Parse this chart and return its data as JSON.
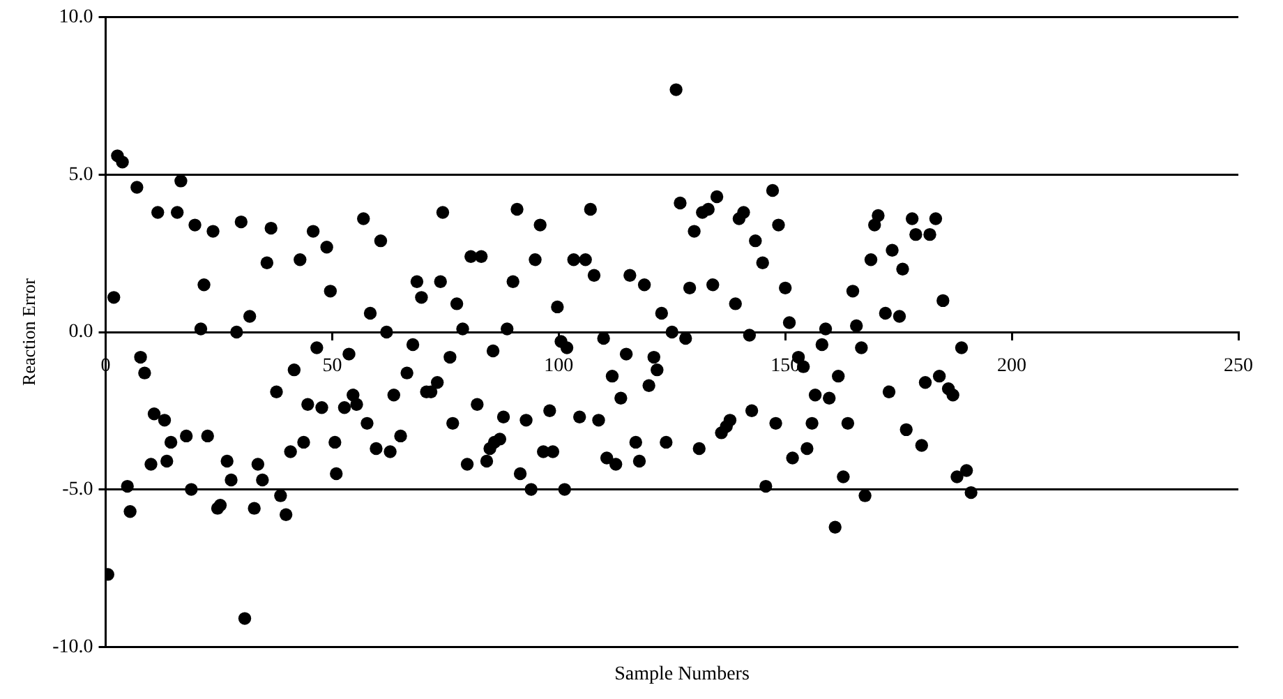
{
  "chart_data": {
    "type": "scatter",
    "xlabel": "Sample Numbers",
    "ylabel": "Reaction Error",
    "grid": "y",
    "marker": "circle",
    "xlim": [
      0,
      250
    ],
    "xticks": [
      0,
      50,
      100,
      150,
      200,
      250
    ],
    "ylim": [
      -10,
      10
    ],
    "yticks": [
      {
        "value": -10,
        "label": "-10.0"
      },
      {
        "value": -5,
        "label": "-5.0"
      },
      {
        "value": 0,
        "label": "0.0"
      },
      {
        "value": 5,
        "label": "5.0"
      },
      {
        "value": 10,
        "label": "10.0"
      }
    ],
    "series": [
      {
        "color": "#000000",
        "x": [
          0.5,
          1.8,
          2.6,
          3.7,
          4.8,
          5.4,
          6.9,
          7.7,
          8.6,
          10.0,
          10.7,
          11.5,
          13.0,
          13.5,
          14.4,
          15.8,
          16.6,
          17.8,
          18.9,
          19.7,
          21.0,
          21.7,
          22.5,
          23.7,
          24.7,
          25.3,
          26.8,
          27.7,
          28.9,
          29.9,
          30.7,
          31.8,
          32.8,
          33.6,
          34.6,
          35.6,
          36.5,
          37.7,
          38.6,
          39.8,
          40.8,
          41.6,
          42.9,
          43.7,
          44.6,
          45.8,
          46.6,
          47.7,
          48.8,
          49.6,
          50.6,
          50.9,
          52.7,
          53.7,
          54.6,
          55.4,
          56.9,
          57.7,
          58.4,
          59.7,
          60.7,
          62.0,
          62.8,
          63.6,
          65.1,
          66.5,
          67.8,
          68.7,
          69.7,
          70.8,
          71.8,
          73.2,
          73.9,
          74.4,
          76.0,
          76.6,
          77.5,
          78.8,
          79.8,
          80.6,
          82.0,
          82.9,
          84.1,
          84.8,
          85.5,
          85.8,
          87.0,
          87.8,
          88.6,
          89.9,
          90.8,
          91.5,
          92.8,
          93.9,
          94.8,
          95.9,
          96.6,
          98.0,
          98.7,
          99.7,
          100.5,
          101.3,
          101.8,
          103.3,
          104.6,
          105.9,
          107.0,
          107.8,
          108.8,
          109.9,
          110.6,
          111.8,
          112.6,
          113.7,
          114.9,
          115.7,
          117.0,
          117.8,
          118.9,
          119.9,
          121.0,
          121.7,
          122.7,
          123.7,
          125.0,
          125.9,
          126.8,
          128.0,
          128.9,
          129.9,
          131.0,
          131.7,
          133.0,
          134.0,
          134.9,
          135.9,
          137.0,
          137.8,
          139.0,
          139.8,
          140.8,
          142.1,
          142.6,
          143.4,
          145.0,
          145.7,
          147.2,
          147.9,
          148.5,
          150.0,
          150.9,
          151.6,
          152.9,
          154.0,
          154.8,
          155.9,
          156.6,
          158.1,
          158.9,
          159.7,
          161.0,
          161.7,
          162.8,
          163.8,
          164.9,
          165.7,
          166.8,
          167.6,
          168.9,
          169.7,
          170.5,
          172.1,
          172.9,
          173.6,
          175.2,
          175.9,
          176.7,
          178.0,
          178.8,
          180.1,
          180.9,
          181.9,
          183.2,
          184.0,
          184.8,
          186.0,
          187.0,
          187.9,
          188.9,
          190.0,
          191.0
        ],
        "values": [
          -7.7,
          1.1,
          5.6,
          5.4,
          -4.9,
          -5.7,
          4.6,
          -0.8,
          -1.3,
          -4.2,
          -2.6,
          3.8,
          -2.8,
          -4.1,
          -3.5,
          3.8,
          4.8,
          -3.3,
          -5.0,
          3.4,
          0.1,
          1.5,
          -3.3,
          3.2,
          -5.6,
          -5.5,
          -4.1,
          -4.7,
          0.0,
          3.5,
          -9.1,
          0.5,
          -5.6,
          -4.2,
          -4.7,
          2.2,
          3.3,
          -1.9,
          -5.2,
          -5.8,
          -3.8,
          -1.2,
          2.3,
          -3.5,
          -2.3,
          3.2,
          -0.5,
          -2.4,
          2.7,
          1.3,
          -3.5,
          -4.5,
          -2.4,
          -0.7,
          -2.0,
          -2.3,
          3.6,
          -2.9,
          0.6,
          -3.7,
          2.9,
          0.0,
          -3.8,
          -2.0,
          -3.3,
          -1.3,
          -0.4,
          1.6,
          1.1,
          -1.9,
          -1.9,
          -1.6,
          1.6,
          3.8,
          -0.8,
          -2.9,
          0.9,
          0.1,
          -4.2,
          2.4,
          -2.3,
          2.4,
          -4.1,
          -3.7,
          -0.6,
          -3.5,
          -3.4,
          -2.7,
          0.1,
          1.6,
          3.9,
          -4.5,
          -2.8,
          -5.0,
          2.3,
          3.4,
          -3.8,
          -2.5,
          -3.8,
          0.8,
          -0.3,
          -5.0,
          -0.5,
          2.3,
          -2.7,
          2.3,
          3.9,
          1.8,
          -2.8,
          -0.2,
          -4.0,
          -1.4,
          -4.2,
          -2.1,
          -0.7,
          1.8,
          -3.5,
          -4.1,
          1.5,
          -1.7,
          -0.8,
          -1.2,
          0.6,
          -3.5,
          0.0,
          7.7,
          4.1,
          -0.2,
          1.4,
          3.2,
          -3.7,
          3.8,
          3.9,
          1.5,
          4.3,
          -3.2,
          -3.0,
          -2.8,
          0.9,
          3.6,
          3.8,
          -0.1,
          -2.5,
          2.9,
          2.2,
          -4.9,
          4.5,
          -2.9,
          3.4,
          1.4,
          0.3,
          -4.0,
          -0.8,
          -1.1,
          -3.7,
          -2.9,
          -2.0,
          -0.4,
          0.1,
          -2.1,
          -6.2,
          -1.4,
          -4.6,
          -2.9,
          1.3,
          0.2,
          -0.5,
          -5.2,
          2.3,
          3.4,
          3.7,
          0.6,
          -1.9,
          2.6,
          0.5,
          2.0,
          -3.1,
          3.6,
          3.1,
          -3.6,
          -1.6,
          3.1,
          3.6,
          -1.4,
          1.0,
          -1.8,
          -2.0,
          -4.6,
          -0.5,
          -4.4,
          -5.1
        ]
      }
    ]
  }
}
